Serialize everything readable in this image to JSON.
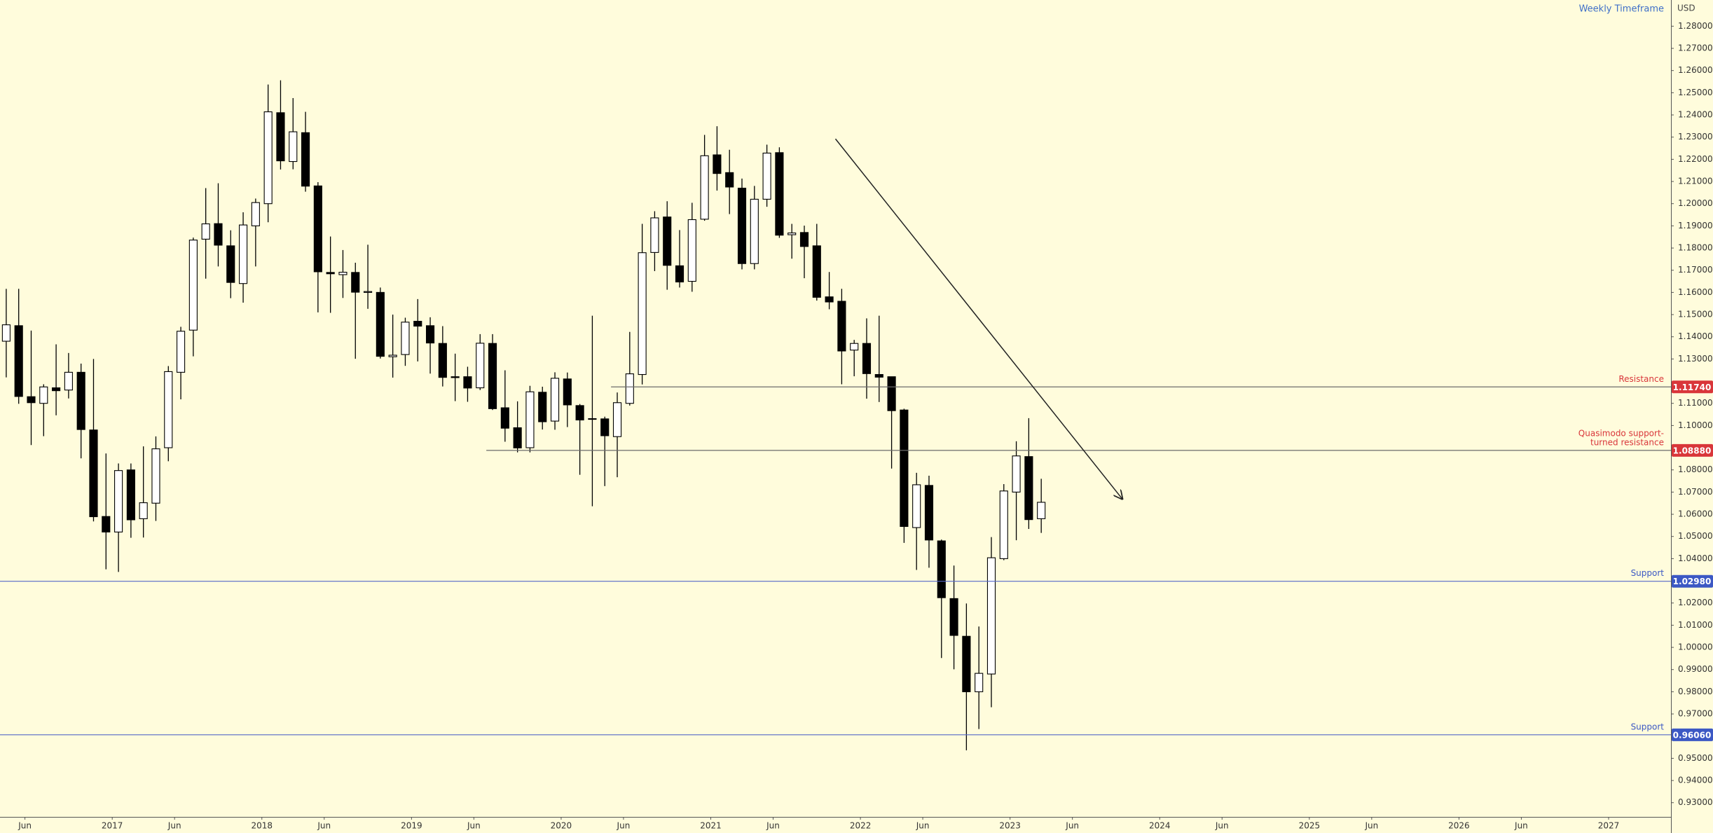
{
  "chart_data": {
    "type": "candlestick",
    "title": "Weekly Timeframe",
    "y_axis_label": "USD",
    "x": [
      "2016-04",
      "2016-05",
      "2016-06",
      "2016-07",
      "2016-08",
      "2016-09",
      "2016-10",
      "2016-11",
      "2016-12",
      "2017-01",
      "2017-02",
      "2017-03",
      "2017-04",
      "2017-05",
      "2017-06",
      "2017-07",
      "2017-08",
      "2017-09",
      "2017-10",
      "2017-11",
      "2017-12",
      "2018-01",
      "2018-02",
      "2018-03",
      "2018-04",
      "2018-05",
      "2018-06",
      "2018-07",
      "2018-08",
      "2018-09",
      "2018-10",
      "2018-11",
      "2018-12",
      "2019-01",
      "2019-02",
      "2019-03",
      "2019-04",
      "2019-05",
      "2019-06",
      "2019-07",
      "2019-08",
      "2019-09",
      "2019-10",
      "2019-11",
      "2019-12",
      "2020-01",
      "2020-02",
      "2020-03",
      "2020-04",
      "2020-05",
      "2020-06",
      "2020-07",
      "2020-08",
      "2020-09",
      "2020-10",
      "2020-11",
      "2020-12",
      "2021-01",
      "2021-02",
      "2021-03",
      "2021-04",
      "2021-05",
      "2021-06",
      "2021-07",
      "2021-08",
      "2021-09",
      "2021-10",
      "2021-11",
      "2021-12",
      "2022-01",
      "2022-02",
      "2022-03",
      "2022-04",
      "2022-05",
      "2022-06",
      "2022-07",
      "2022-08",
      "2022-09",
      "2022-10",
      "2022-11",
      "2022-12",
      "2023-01",
      "2023-02",
      "2023-03"
    ],
    "open": [
      1.138,
      1.145,
      1.113,
      1.11,
      1.117,
      1.116,
      1.124,
      1.098,
      1.059,
      1.052,
      1.08,
      1.058,
      1.065,
      1.09,
      1.124,
      1.143,
      1.184,
      1.191,
      1.181,
      1.164,
      1.19,
      1.2,
      1.241,
      1.219,
      1.232,
      1.208,
      1.169,
      1.168,
      1.169,
      1.16,
      1.16,
      1.131,
      1.132,
      1.147,
      1.145,
      1.137,
      1.122,
      1.122,
      1.117,
      1.137,
      1.108,
      1.099,
      1.09,
      1.115,
      1.102,
      1.121,
      1.109,
      1.103,
      1.103,
      1.095,
      1.11,
      1.123,
      1.178,
      1.194,
      1.172,
      1.165,
      1.193,
      1.222,
      1.214,
      1.207,
      1.173,
      1.202,
      1.223,
      1.186,
      1.187,
      1.181,
      1.158,
      1.156,
      1.134,
      1.137,
      1.123,
      1.122,
      1.107,
      1.054,
      1.073,
      1.048,
      1.022,
      1.005,
      0.98,
      0.988,
      1.04,
      1.07,
      1.086,
      1.058
    ],
    "high": [
      1.1616,
      1.1616,
      1.1428,
      1.1186,
      1.1366,
      1.1327,
      1.1279,
      1.13,
      1.0874,
      1.0829,
      1.0829,
      1.0906,
      1.0951,
      1.1268,
      1.1445,
      1.1847,
      1.207,
      1.2092,
      1.188,
      1.1961,
      1.2023,
      1.2537,
      1.2556,
      1.2476,
      1.2414,
      1.2097,
      1.1852,
      1.1791,
      1.1734,
      1.1815,
      1.1622,
      1.15,
      1.1486,
      1.157,
      1.1488,
      1.1448,
      1.1324,
      1.1265,
      1.1412,
      1.1412,
      1.1249,
      1.1109,
      1.1179,
      1.1175,
      1.124,
      1.1239,
      1.1097,
      1.1495,
      1.104,
      1.1149,
      1.1422,
      1.1909,
      1.1966,
      1.2011,
      1.1881,
      1.2004,
      1.231,
      1.2349,
      1.2243,
      1.2113,
      1.208,
      1.2266,
      1.2254,
      1.1909,
      1.1901,
      1.1909,
      1.1692,
      1.1616,
      1.1386,
      1.1483,
      1.1495,
      1.1185,
      1.1076,
      1.0787,
      1.0774,
      1.0486,
      1.0369,
      1.0198,
      1.0094,
      1.0497,
      1.0736,
      1.0929,
      1.1033,
      1.076
    ],
    "low": [
      1.1217,
      1.1098,
      1.0912,
      1.0952,
      1.1046,
      1.1122,
      1.0852,
      1.0568,
      1.0352,
      1.034,
      1.0494,
      1.0495,
      1.057,
      1.0839,
      1.1118,
      1.1312,
      1.1662,
      1.1717,
      1.1574,
      1.1554,
      1.1717,
      1.1916,
      1.2154,
      1.2155,
      1.2054,
      1.151,
      1.1508,
      1.1575,
      1.1301,
      1.1526,
      1.1302,
      1.1216,
      1.1269,
      1.1289,
      1.1234,
      1.1176,
      1.111,
      1.1107,
      1.116,
      1.107,
      1.0927,
      1.0879,
      1.0879,
      1.0982,
      1.0981,
      1.0993,
      1.0778,
      1.0636,
      1.0727,
      1.0767,
      1.109,
      1.1185,
      1.1696,
      1.1612,
      1.1622,
      1.1603,
      1.1923,
      1.2059,
      1.1953,
      1.1704,
      1.1704,
      1.1986,
      1.1846,
      1.1752,
      1.1664,
      1.1563,
      1.1524,
      1.1186,
      1.1222,
      1.1121,
      1.1106,
      1.0806,
      1.0471,
      1.0349,
      1.0359,
      0.9952,
      0.9901,
      0.9536,
      0.9632,
      0.973,
      1.0393,
      1.0483,
      1.0534,
      1.0516
    ],
    "close": [
      1.1454,
      1.1131,
      1.1103,
      1.1174,
      1.1157,
      1.124,
      1.0982,
      1.0589,
      1.052,
      1.0797,
      1.0575,
      1.0652,
      1.0895,
      1.1243,
      1.1425,
      1.1836,
      1.1909,
      1.1813,
      1.1645,
      1.1904,
      1.2005,
      1.2414,
      1.2193,
      1.2324,
      1.2079,
      1.1693,
      1.1684,
      1.1691,
      1.1601,
      1.1604,
      1.1312,
      1.1317,
      1.1466,
      1.1448,
      1.1372,
      1.1217,
      1.1216,
      1.1169,
      1.1371,
      1.1076,
      1.0988,
      1.0899,
      1.1152,
      1.1017,
      1.1213,
      1.1093,
      1.1025,
      1.1031,
      1.0954,
      1.1103,
      1.1233,
      1.1779,
      1.1936,
      1.1722,
      1.1647,
      1.1928,
      1.2216,
      1.2136,
      1.2075,
      1.173,
      1.202,
      1.2228,
      1.1858,
      1.1868,
      1.1807,
      1.1578,
      1.1557,
      1.1336,
      1.137,
      1.1234,
      1.1218,
      1.1067,
      1.0545,
      1.0733,
      1.0484,
      1.0224,
      1.0054,
      0.98,
      0.9883,
      1.0404,
      1.0705,
      1.0863,
      1.0576,
      1.0654
    ],
    "up_color": "#ffffff",
    "down_color": "#000000",
    "xlim": [
      "2016-04",
      "2027-06"
    ],
    "xticks": [
      {
        "value": "2016-06",
        "label": "Jun"
      },
      {
        "value": "2017-01",
        "label": "2017"
      },
      {
        "value": "2017-06",
        "label": "Jun"
      },
      {
        "value": "2018-01",
        "label": "2018"
      },
      {
        "value": "2018-06",
        "label": "Jun"
      },
      {
        "value": "2019-01",
        "label": "2019"
      },
      {
        "value": "2019-06",
        "label": "Jun"
      },
      {
        "value": "2020-01",
        "label": "2020"
      },
      {
        "value": "2020-06",
        "label": "Jun"
      },
      {
        "value": "2021-01",
        "label": "2021"
      },
      {
        "value": "2021-06",
        "label": "Jun"
      },
      {
        "value": "2022-01",
        "label": "2022"
      },
      {
        "value": "2022-06",
        "label": "Jun"
      },
      {
        "value": "2023-01",
        "label": "2023"
      },
      {
        "value": "2023-06",
        "label": "Jun"
      },
      {
        "value": "2024-01",
        "label": "2024"
      },
      {
        "value": "2024-06",
        "label": "Jun"
      },
      {
        "value": "2025-01",
        "label": "2025"
      },
      {
        "value": "2025-06",
        "label": "Jun"
      },
      {
        "value": "2026-01",
        "label": "2026"
      },
      {
        "value": "2026-06",
        "label": "Jun"
      },
      {
        "value": "2027-01",
        "label": "2027"
      }
    ],
    "ylim": [
      0.9236,
      1.2918
    ],
    "yticks": [
      {
        "value": 1.28,
        "label": "1.28000"
      },
      {
        "value": 1.27,
        "label": "1.27000"
      },
      {
        "value": 1.26,
        "label": "1.26000"
      },
      {
        "value": 1.25,
        "label": "1.25000"
      },
      {
        "value": 1.24,
        "label": "1.24000"
      },
      {
        "value": 1.23,
        "label": "1.23000"
      },
      {
        "value": 1.22,
        "label": "1.22000"
      },
      {
        "value": 1.21,
        "label": "1.21000"
      },
      {
        "value": 1.2,
        "label": "1.20000"
      },
      {
        "value": 1.19,
        "label": "1.19000"
      },
      {
        "value": 1.18,
        "label": "1.18000"
      },
      {
        "value": 1.17,
        "label": "1.17000"
      },
      {
        "value": 1.16,
        "label": "1.16000"
      },
      {
        "value": 1.15,
        "label": "1.15000"
      },
      {
        "value": 1.14,
        "label": "1.14000"
      },
      {
        "value": 1.13,
        "label": "1.13000"
      },
      {
        "value": 1.11,
        "label": "1.11000"
      },
      {
        "value": 1.1,
        "label": "1.10000"
      },
      {
        "value": 1.08,
        "label": "1.08000"
      },
      {
        "value": 1.07,
        "label": "1.07000"
      },
      {
        "value": 1.06,
        "label": "1.06000"
      },
      {
        "value": 1.05,
        "label": "1.05000"
      },
      {
        "value": 1.04,
        "label": "1.04000"
      },
      {
        "value": 1.02,
        "label": "1.02000"
      },
      {
        "value": 1.01,
        "label": "1.01000"
      },
      {
        "value": 1.0,
        "label": "1.00000"
      },
      {
        "value": 0.99,
        "label": "0.99000"
      },
      {
        "value": 0.98,
        "label": "0.98000"
      },
      {
        "value": 0.97,
        "label": "0.97000"
      },
      {
        "value": 0.95,
        "label": "0.95000"
      },
      {
        "value": 0.94,
        "label": "0.94000"
      },
      {
        "value": 0.93,
        "label": "0.93000"
      }
    ],
    "levels": [
      {
        "label": [
          "Resistance"
        ],
        "price": 1.1174,
        "price_label": "1.11740",
        "color": "#d9363a",
        "line_color": "#6b6b6b",
        "start": "2020-05"
      },
      {
        "label": [
          "Quasimodo support-",
          "turned resistance"
        ],
        "price": 1.0888,
        "price_label": "1.08880",
        "color": "#d9363a",
        "line_color": "#6b6b6b",
        "start": "2019-07"
      },
      {
        "label": [
          "Support"
        ],
        "price": 1.0298,
        "price_label": "1.02980",
        "color": "#3c58c4",
        "line_color": "#5468c8"
      },
      {
        "label": [
          "Support"
        ],
        "price": 0.9606,
        "price_label": "0.96060",
        "color": "#3c58c4",
        "line_color": "#5468c8"
      }
    ],
    "trendline": {
      "x": [
        "2021-11",
        "2023-10"
      ],
      "y": [
        1.2292,
        1.0669
      ],
      "color": "#222222"
    }
  }
}
